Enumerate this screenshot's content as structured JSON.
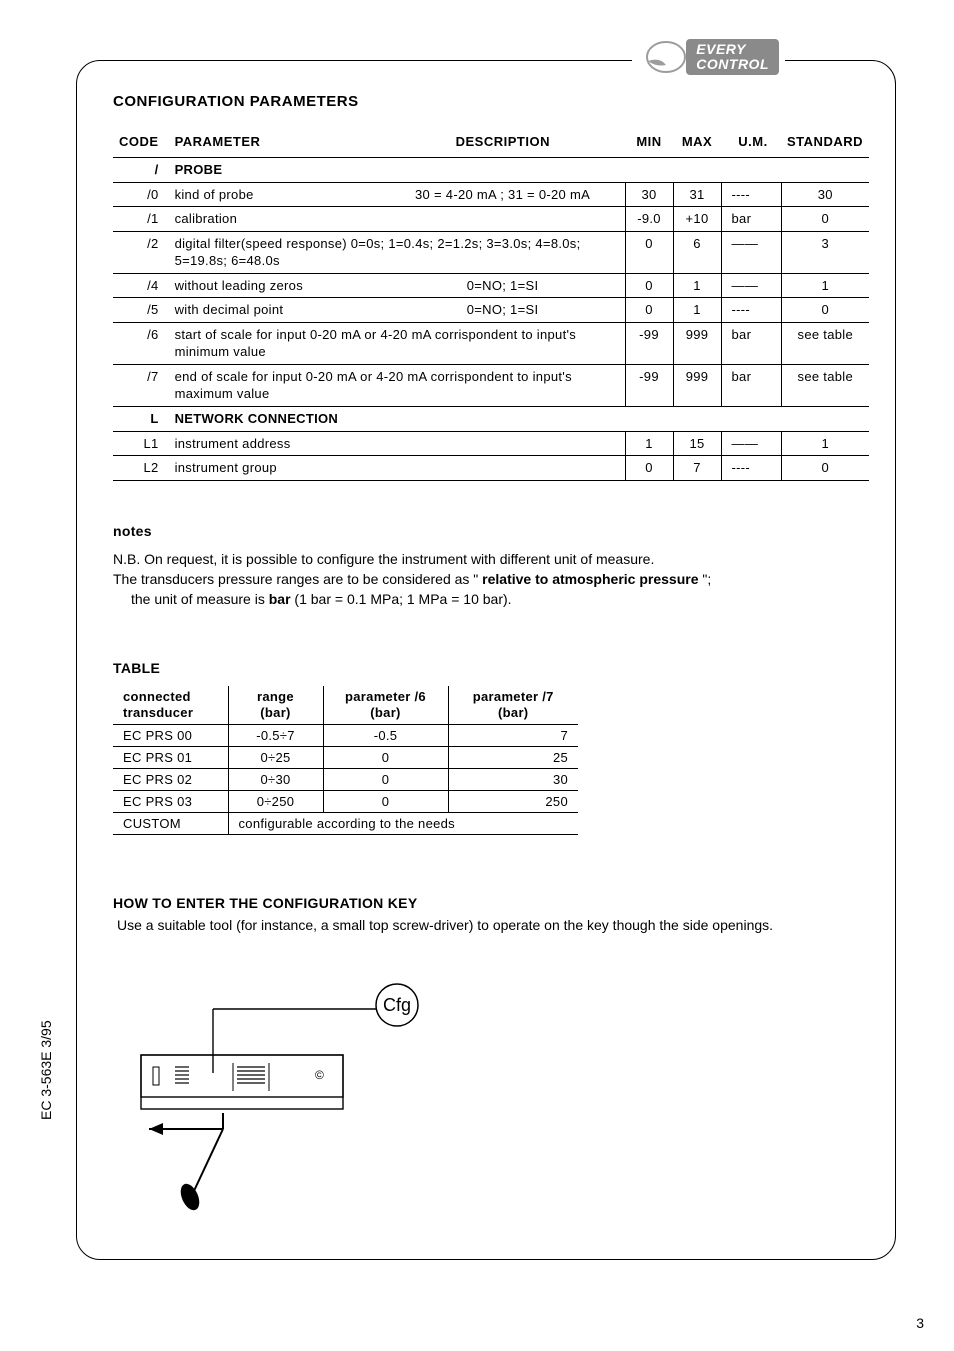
{
  "logo": {
    "line1": "EVERY",
    "line2": "CONTROL"
  },
  "headings": {
    "config_params": "CONFIGURATION PARAMETERS",
    "notes": "notes",
    "table": "TABLE",
    "howto": "HOW TO ENTER THE CONFIGURATION KEY"
  },
  "params_headers": {
    "code": "CODE",
    "parameter": "PARAMETER",
    "description": "DESCRIPTION",
    "min": "MIN",
    "max": "MAX",
    "um": "U.M.",
    "standard": "STANDARD"
  },
  "params_rows": [
    {
      "code": "/",
      "parameter": "PROBE",
      "description": "",
      "min": "",
      "max": "",
      "um": "",
      "standard": "",
      "section": true
    },
    {
      "code": "/0",
      "parameter": "kind of probe",
      "description": "30 = 4-20 mA ; 31 = 0-20 mA",
      "min": "30",
      "max": "31",
      "um": "----",
      "standard": "30"
    },
    {
      "code": "/1",
      "parameter": "calibration",
      "description": "",
      "min": "-9.0",
      "max": "+10",
      "um": "bar",
      "standard": "0"
    },
    {
      "code": "/2",
      "parameter": "digital filter(speed response)  0=0s;  1=0.4s;  2=1.2s;  3=3.0s;  4=8.0s;  5=19.8s;  6=48.0s",
      "description": "",
      "min": "0",
      "max": "6",
      "um": "——",
      "standard": "3",
      "wide": true
    },
    {
      "code": "/4",
      "parameter": "without leading zeros",
      "description": "0=NO;  1=SI",
      "min": "0",
      "max": "1",
      "um": "——",
      "standard": "1"
    },
    {
      "code": "/5",
      "parameter": "with decimal point",
      "description": "0=NO;  1=SI",
      "min": "0",
      "max": "1",
      "um": "----",
      "standard": "0"
    },
    {
      "code": "/6",
      "parameter": "start of scale for input  0-20 mA or 4-20 mA  corrispondent to input's minimum value",
      "description": "",
      "min": "-99",
      "max": "999",
      "um": "bar",
      "standard": "see table",
      "wide": true
    },
    {
      "code": "/7",
      "parameter": "end of scale for input  0-20 mA or 4-20 mA corrispondent to input's maximum value",
      "description": "",
      "min": "-99",
      "max": "999",
      "um": "bar",
      "standard": "see table",
      "wide": true
    },
    {
      "code": "L",
      "parameter": "NETWORK CONNECTION",
      "description": "",
      "min": "",
      "max": "",
      "um": "",
      "standard": "",
      "section": true
    },
    {
      "code": "L1",
      "parameter": "instrument address",
      "description": "",
      "min": "1",
      "max": "15",
      "um": "——",
      "standard": "1"
    },
    {
      "code": "L2",
      "parameter": "instrument group",
      "description": "",
      "min": "0",
      "max": "7",
      "um": "----",
      "standard": "0",
      "last": true
    }
  ],
  "notes": {
    "l1": "N.B. On request, it is possible to configure the instrument with different unit of measure.",
    "l2a": "The transducers pressure ranges are to be considered as \"",
    "l2b": " relative to atmospheric pressure ",
    "l2c": "\";",
    "l3a": "the unit of measure is ",
    "l3b": "bar",
    "l3c": " (1 bar = 0.1 MPa;  1 MPa = 10 bar)."
  },
  "trans_headers": {
    "c1a": "connected",
    "c1b": "transducer",
    "c2a": "range",
    "c2b": "(bar)",
    "c3a": "parameter /6",
    "c3b": "(bar)",
    "c4a": "parameter /7",
    "c4b": "(bar)"
  },
  "trans_rows": [
    {
      "c1": "EC PRS 00",
      "c2": "-0.5÷7",
      "c3": "-0.5",
      "c4": "7"
    },
    {
      "c1": "EC PRS 01",
      "c2": "0÷25",
      "c3": "0",
      "c4": "25"
    },
    {
      "c1": "EC PRS 02",
      "c2": "0÷30",
      "c3": "0",
      "c4": "30"
    },
    {
      "c1": "EC PRS 03",
      "c2": "0÷250",
      "c3": "0",
      "c4": "250"
    }
  ],
  "trans_custom": {
    "label": "CUSTOM",
    "text": "configurable according to the needs"
  },
  "howto_text": "Use a suitable tool (for instance, a small top screw-driver) to operate on the key though the side openings.",
  "cfg_label": "Cfg",
  "copyright_glyph": "©",
  "side_label": "EC 3-563E 3/95",
  "page_number": "3",
  "colors": {
    "text": "#000000",
    "logo_bg": "#8a8a8a"
  },
  "col_widths": {
    "c1": 115,
    "c2": 95,
    "c3": 125,
    "c4": 130
  }
}
